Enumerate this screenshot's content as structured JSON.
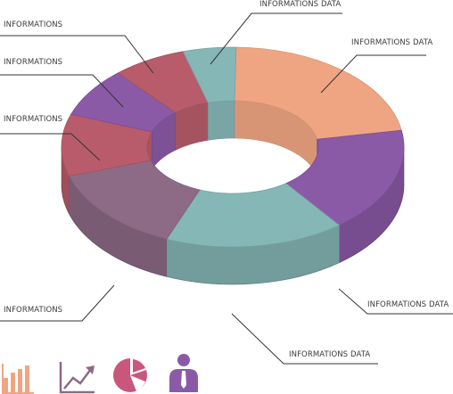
{
  "chart_data": {
    "type": "pie",
    "style": "3d-donut",
    "slices": [
      {
        "label": "INFORMATIONS DATA",
        "value": 22,
        "color": "#f0a582"
      },
      {
        "label": "INFORMATIONS DATA",
        "value": 17,
        "color": "#8b5aa6"
      },
      {
        "label": "INFORMATIONS DATA",
        "value": 17,
        "color": "#86b7b7"
      },
      {
        "label": "INFORMATIONS",
        "value": 14,
        "color": "#8d6b86"
      },
      {
        "label": "INFORMATIONS",
        "value": 10,
        "color": "#b85c6b"
      },
      {
        "label": "INFORMATIONS",
        "value": 8,
        "color": "#8b5aa6"
      },
      {
        "label": "INFORMATIONS",
        "value": 7,
        "color": "#b85c6b"
      },
      {
        "label": "INFORMATIONS DATA",
        "value": 5,
        "color": "#86b7b7"
      }
    ]
  },
  "icons": [
    {
      "name": "bar-chart-icon",
      "color": "#f0a582"
    },
    {
      "name": "line-chart-icon",
      "color": "#8d6b86"
    },
    {
      "name": "pie-chart-icon",
      "color": "#c9577b"
    },
    {
      "name": "person-icon",
      "color": "#8b5aa6"
    }
  ]
}
